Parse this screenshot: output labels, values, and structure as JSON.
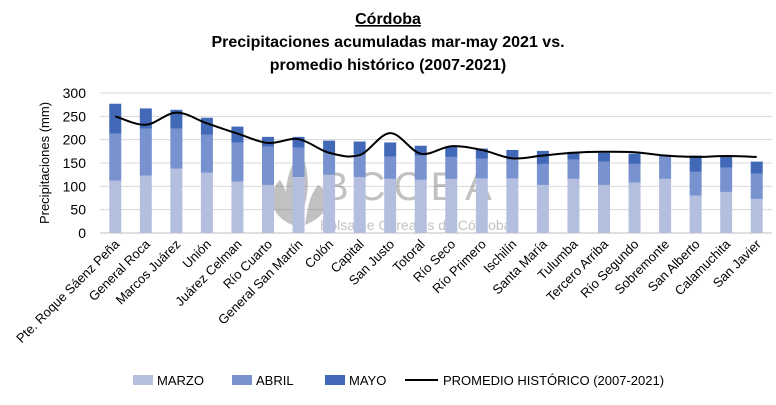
{
  "chart_data": {
    "type": "bar",
    "stacked": true,
    "title": "Córdoba",
    "subtitle_lines": [
      "Precipitaciones acumuladas mar-may 2021 vs.",
      "promedio histórico (2007-2021)"
    ],
    "xlabel": "",
    "ylabel": "Precipitaciones (mm)",
    "ylim": [
      0,
      300
    ],
    "yticks": [
      0,
      50,
      100,
      150,
      200,
      250,
      300
    ],
    "grid": true,
    "legend_position": "bottom",
    "watermark": "BCCBA Bolsa de Cereales de Córdoba",
    "categories": [
      "Pte. Roque Sáenz Peña",
      "General Roca",
      "Marcos Juárez",
      "Unión",
      "Juárez Celman",
      "Río Cuarto",
      "General San Martín",
      "Colón",
      "Capital",
      "San Justo",
      "Totoral",
      "Río Seco",
      "Río Primero",
      "Ischilín",
      "Santa María",
      "Tulumba",
      "Tercero Arriba",
      "Río Segundo",
      "Sobremonte",
      "San Alberto",
      "Calamuchita",
      "San Javier"
    ],
    "series": [
      {
        "name": "MARZO",
        "type": "bar",
        "color": "#b4bfe0",
        "values": [
          112,
          123,
          138,
          129,
          110,
          103,
          120,
          125,
          120,
          116,
          114,
          116,
          117,
          117,
          103,
          116,
          103,
          108,
          116,
          80,
          88,
          73
        ]
      },
      {
        "name": "ABRIL",
        "type": "bar",
        "color": "#7892d0",
        "values": [
          101,
          101,
          86,
          82,
          84,
          82,
          63,
          47,
          48,
          48,
          52,
          47,
          42,
          40,
          45,
          41,
          50,
          40,
          48,
          51,
          52,
          54
        ]
      },
      {
        "name": "MAYO",
        "type": "bar",
        "color": "#4169b8",
        "values": [
          64,
          43,
          40,
          36,
          34,
          21,
          23,
          26,
          28,
          30,
          21,
          22,
          22,
          21,
          28,
          17,
          19,
          22,
          2,
          35,
          23,
          26
        ]
      },
      {
        "name": "PROMEDIO HISTÓRICO (2007-2021)",
        "type": "line",
        "color": "#000000",
        "values": [
          250,
          232,
          258,
          235,
          213,
          193,
          201,
          172,
          167,
          214,
          170,
          186,
          178,
          160,
          166,
          172,
          174,
          173,
          166,
          163,
          165,
          163
        ]
      }
    ]
  }
}
